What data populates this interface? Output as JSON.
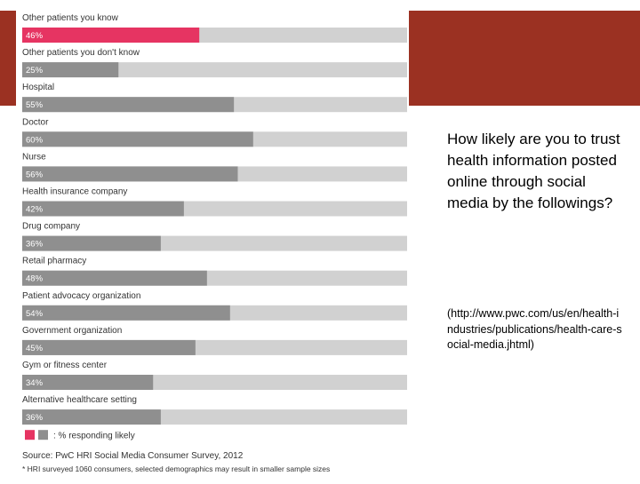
{
  "slide": {
    "question": "How likely are you to trust health information posted online through social media by the followings?",
    "url": "(http://www.pwc.com/us/en/health-industries/publications/health-care-social-media.jhtml)"
  },
  "colors": {
    "accent_bar": "#9b3122",
    "highlight": "#e63462",
    "bar": "#8f8f8f",
    "track": "#d1d1d1"
  },
  "chart_data": {
    "type": "bar",
    "orientation": "horizontal",
    "title": "",
    "xlim": [
      0,
      100
    ],
    "unit": "%",
    "categories": [
      "Other patients you know",
      "Other patients you don't know",
      "Hospital",
      "Doctor",
      "Nurse",
      "Health insurance company",
      "Drug company",
      "Retail pharmacy",
      "Patient advocacy organization",
      "Government organization",
      "Gym or fitness center",
      "Alternative healthcare setting"
    ],
    "values": [
      46,
      25,
      55,
      60,
      56,
      42,
      36,
      48,
      54,
      45,
      34,
      36
    ],
    "value_labels": [
      "46%",
      "25%",
      "55%",
      "60%",
      "56%",
      "42%",
      "36%",
      "48%",
      "54%",
      "45%",
      "34%",
      "36%"
    ],
    "highlight_index": 0,
    "legend": {
      "label": "% responding likely",
      "position": "bottom-left"
    },
    "source": "Source: PwC HRI Social Media Consumer Survey, 2012",
    "footnote": "* HRI surveyed 1060 consumers, selected demographics may result in smaller sample sizes"
  }
}
